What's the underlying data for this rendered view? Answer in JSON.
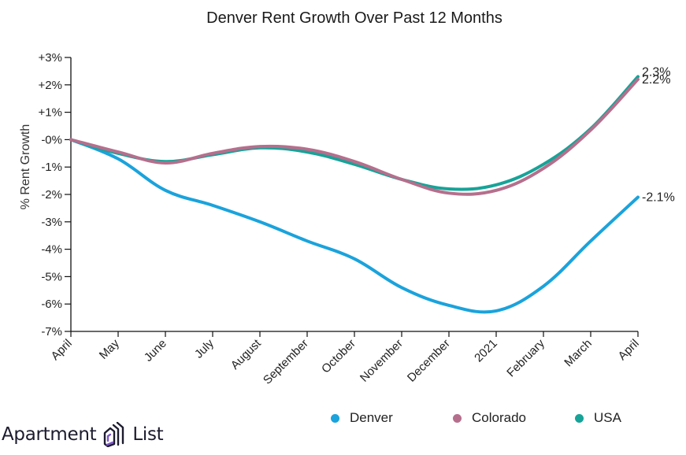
{
  "chart_data": {
    "type": "line",
    "title": "Denver Rent Growth Over Past 12 Months",
    "xlabel": "",
    "ylabel": "% Rent Growth",
    "categories": [
      "April",
      "May",
      "June",
      "July",
      "August",
      "September",
      "October",
      "November",
      "December",
      "2021",
      "February",
      "March",
      "April"
    ],
    "ylim": [
      -7,
      3
    ],
    "yticks": [
      {
        "value": 3,
        "label": "+3%"
      },
      {
        "value": 2,
        "label": "+2%"
      },
      {
        "value": 1,
        "label": "+1%"
      },
      {
        "value": 0,
        "label": "-0%"
      },
      {
        "value": -1,
        "label": "-1%"
      },
      {
        "value": -2,
        "label": "-2%"
      },
      {
        "value": -3,
        "label": "-3%"
      },
      {
        "value": -4,
        "label": "-4%"
      },
      {
        "value": -5,
        "label": "-5%"
      },
      {
        "value": -6,
        "label": "-6%"
      },
      {
        "value": -7,
        "label": "-7%"
      }
    ],
    "grid": false,
    "legend_position": "bottom-right",
    "series": [
      {
        "name": "Denver",
        "color": "#1aa3dc",
        "end_label": "-2.1%",
        "values": [
          0,
          -0.7,
          -1.85,
          -2.4,
          -3.0,
          -3.7,
          -4.35,
          -5.4,
          -6.05,
          -6.25,
          -5.35,
          -3.7,
          -2.1
        ]
      },
      {
        "name": "Colorado",
        "color": "#b56f8c",
        "end_label": "2.2%",
        "values": [
          0,
          -0.45,
          -0.85,
          -0.5,
          -0.25,
          -0.35,
          -0.8,
          -1.45,
          -1.95,
          -1.85,
          -1.05,
          0.35,
          2.2
        ]
      },
      {
        "name": "USA",
        "color": "#17a398",
        "end_label": "2.3%",
        "values": [
          0,
          -0.5,
          -0.8,
          -0.55,
          -0.3,
          -0.45,
          -0.9,
          -1.45,
          -1.8,
          -1.65,
          -0.9,
          0.4,
          2.3
        ]
      }
    ]
  },
  "branding": {
    "logo_word_left": "Apartment",
    "logo_word_right": "List",
    "logo_icon": "apartment-list-building-icon"
  }
}
